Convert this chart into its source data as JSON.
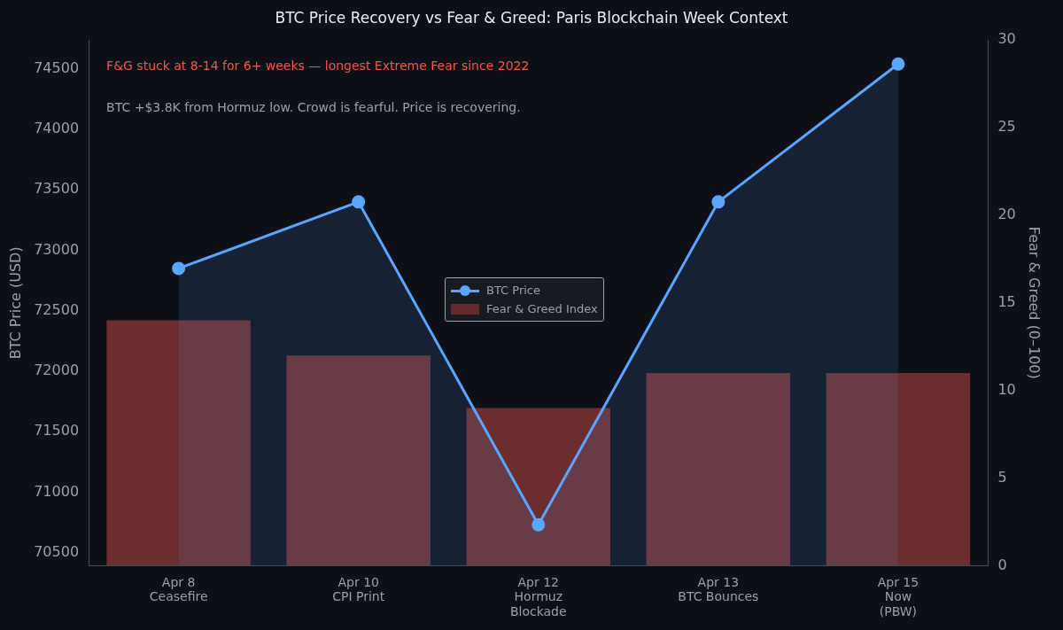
{
  "chart_data": {
    "type": "bar",
    "title": "BTC Price Recovery vs Fear & Greed: Paris Blockchain Week Context",
    "categories": [
      "Apr 8\nCeasefire",
      "Apr 10\nCPI Print",
      "Apr 12\nHormuz\nBlockade",
      "Apr 13\nBTC Bounces",
      "Apr 15\nNow\n(PBW)"
    ],
    "series": [
      {
        "name": "BTC Price",
        "type": "area",
        "color": "#58a6ff",
        "values": [
          72850,
          73400,
          70730,
          73400,
          74540
        ]
      },
      {
        "name": "Fear & Greed Index",
        "axis": "y2",
        "color": "#6b2d2e",
        "values": [
          14,
          12,
          9,
          11,
          11
        ]
      }
    ],
    "ylabel": "BTC Price (USD)",
    "y2label": "Fear & Greed (0–100)",
    "ylim": [
      70390,
      74740
    ],
    "yticks": [
      70500,
      71000,
      71500,
      72000,
      72500,
      73000,
      73500,
      74000,
      74500
    ],
    "y2lim": [
      0,
      30
    ],
    "y2ticks": [
      0,
      5,
      10,
      15,
      20,
      25,
      30
    ],
    "annotations": [
      "F&G stuck at 8-14 for 6+ weeks — longest Extreme Fear since 2022",
      "BTC +$3.8K from Hormuz low. Crowd is fearful. Price is recovering."
    ],
    "legend": "center",
    "marker": "circle",
    "grid": false
  }
}
